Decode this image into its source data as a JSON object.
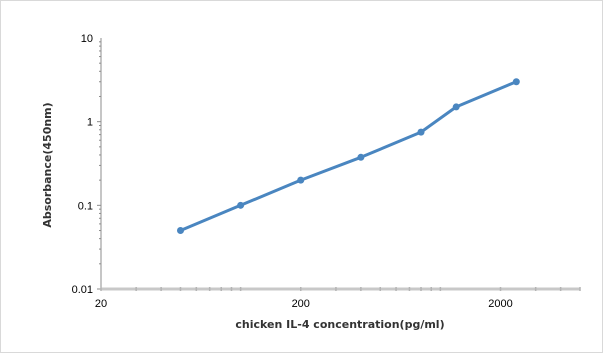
{
  "chart_data": {
    "type": "line",
    "title": "",
    "xlabel": "chicken IL-4 concentration(pg/ml)",
    "ylabel": "Absorbance(450nm)",
    "x_scale": "log",
    "y_scale": "log",
    "xlim": [
      20,
      5000
    ],
    "ylim": [
      0.01,
      10
    ],
    "x_ticks": [
      20,
      200,
      2000
    ],
    "x_tick_labels": [
      "20",
      "200",
      "2000"
    ],
    "y_ticks": [
      10,
      1,
      0.1,
      0.01
    ],
    "y_tick_labels": [
      "10",
      "1",
      "0.1",
      "0.01"
    ],
    "grid": false,
    "legend": "none",
    "series": [
      {
        "color": "#4a86c0",
        "x": [
          50,
          100,
          200,
          400,
          800,
          1200,
          2400
        ],
        "y": [
          0.05,
          0.1,
          0.2,
          0.375,
          0.75,
          1.5,
          3.0
        ]
      }
    ]
  }
}
